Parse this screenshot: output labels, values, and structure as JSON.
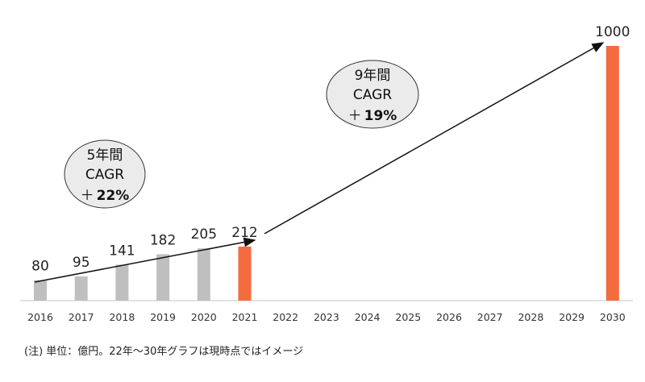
{
  "chart_data": {
    "type": "bar",
    "categories": [
      "2016",
      "2017",
      "2018",
      "2019",
      "2020",
      "2021",
      "2022",
      "2023",
      "2024",
      "2025",
      "2026",
      "2027",
      "2028",
      "2029",
      "2030"
    ],
    "values": [
      80,
      95,
      141,
      182,
      205,
      212,
      null,
      null,
      null,
      null,
      null,
      null,
      null,
      null,
      1000
    ],
    "value_labels": [
      "80",
      "95",
      "141",
      "182",
      "205",
      "212",
      "",
      "",
      "",
      "",
      "",
      "",
      "",
      "",
      "1000"
    ],
    "highlight": [
      "2021",
      "2030"
    ],
    "colors": {
      "actual": "#bfbfbf",
      "highlight": "#f36b3f",
      "bubble_fill": "#ebebeb"
    },
    "ylim": [
      0,
      1000
    ],
    "title": "",
    "xlabel": "",
    "ylabel": "",
    "annotations": [
      {
        "from": "2016",
        "to": "2021",
        "line1": "5年間",
        "line2": "CAGR",
        "prefix": "＋",
        "value": "22%"
      },
      {
        "from": "2021",
        "to": "2030",
        "line1": "9年間",
        "line2": "CAGR",
        "prefix": "＋",
        "value": "19%"
      }
    ],
    "note": "(注) 単位：億円。22年～30年グラフは現時点ではイメージ"
  }
}
